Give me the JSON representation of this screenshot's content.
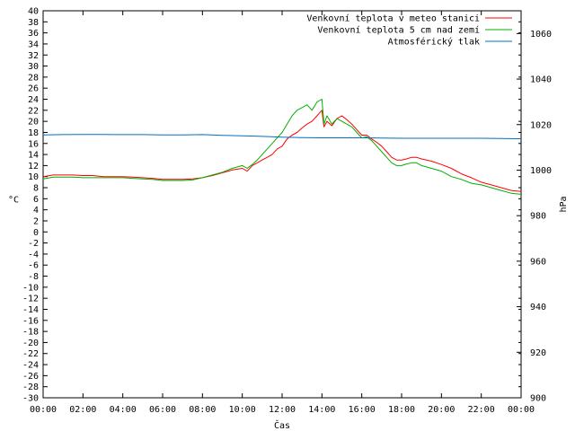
{
  "chart_data": {
    "type": "line",
    "xlabel": "Čas",
    "ylabel": "°C",
    "y2label": "hPa",
    "xlim": [
      0,
      24
    ],
    "x_ticks": [
      "00:00",
      "02:00",
      "04:00",
      "06:00",
      "08:00",
      "10:00",
      "12:00",
      "14:00",
      "16:00",
      "18:00",
      "20:00",
      "22:00",
      "00:00"
    ],
    "ylim": [
      -30,
      40
    ],
    "y_ticks": [
      40,
      38,
      36,
      34,
      32,
      30,
      28,
      26,
      24,
      22,
      20,
      18,
      16,
      14,
      12,
      10,
      8,
      6,
      4,
      2,
      0,
      -2,
      -4,
      -6,
      -8,
      -10,
      -12,
      -14,
      -16,
      -18,
      -20,
      -22,
      -24,
      -26,
      -28,
      -30
    ],
    "y2lim": [
      900,
      1070
    ],
    "y2_ticks": [
      1060,
      1040,
      1020,
      1000,
      980,
      960,
      940,
      920,
      900
    ],
    "grid": false,
    "legend_position": "top-right",
    "series": [
      {
        "name": "Venkovní teplota v meteo stanici",
        "color": "#ff0000",
        "axis": "left",
        "x": [
          0,
          0.5,
          1,
          1.5,
          2,
          2.5,
          3,
          3.5,
          4,
          4.5,
          5,
          5.5,
          6,
          6.5,
          7,
          7.5,
          8,
          8.5,
          9,
          9.5,
          10,
          10.25,
          10.5,
          10.75,
          11,
          11.25,
          11.5,
          11.75,
          12,
          12.25,
          12.5,
          12.75,
          13,
          13.25,
          13.5,
          13.75,
          14,
          14.1,
          14.25,
          14.5,
          14.75,
          15,
          15.25,
          15.5,
          15.75,
          16,
          16.25,
          16.5,
          16.75,
          17,
          17.25,
          17.5,
          17.75,
          18,
          18.25,
          18.5,
          18.75,
          19,
          19.5,
          20,
          20.5,
          21,
          21.5,
          22,
          22.5,
          23,
          23.5,
          24
        ],
        "values": [
          10,
          10.3,
          10.3,
          10.3,
          10.2,
          10.2,
          10,
          10,
          10,
          9.9,
          9.8,
          9.7,
          9.5,
          9.5,
          9.5,
          9.6,
          9.8,
          10.2,
          10.7,
          11.2,
          11.5,
          11,
          12,
          12.5,
          13,
          13.5,
          14,
          15,
          15.5,
          16.8,
          17.5,
          18,
          18.8,
          19.5,
          20,
          21,
          22,
          19,
          20,
          19.2,
          20.5,
          21,
          20.3,
          19.5,
          18.5,
          17.5,
          17.5,
          16.8,
          16.2,
          15.5,
          14.5,
          13.5,
          13,
          13,
          13.2,
          13.5,
          13.5,
          13.2,
          12.8,
          12.2,
          11.5,
          10.5,
          9.8,
          9,
          8.5,
          8,
          7.5,
          7.3
        ]
      },
      {
        "name": "Venkovní teplota 5 cm nad zemí",
        "color": "#00b000",
        "axis": "left",
        "x": [
          0,
          0.5,
          1,
          1.5,
          2,
          2.5,
          3,
          3.5,
          4,
          4.5,
          5,
          5.5,
          6,
          6.5,
          7,
          7.5,
          8,
          8.5,
          9,
          9.5,
          10,
          10.25,
          10.5,
          10.75,
          11,
          11.25,
          11.5,
          11.75,
          12,
          12.25,
          12.5,
          12.75,
          13,
          13.25,
          13.5,
          13.75,
          14,
          14.1,
          14.25,
          14.5,
          14.75,
          15,
          15.25,
          15.5,
          15.75,
          16,
          16.25,
          16.5,
          16.75,
          17,
          17.25,
          17.5,
          17.75,
          18,
          18.25,
          18.5,
          18.75,
          19,
          19.5,
          20,
          20.5,
          21,
          21.5,
          22,
          22.5,
          23,
          23.5,
          24
        ],
        "values": [
          9.6,
          9.9,
          9.9,
          9.9,
          9.8,
          9.8,
          9.8,
          9.8,
          9.8,
          9.7,
          9.6,
          9.5,
          9.3,
          9.3,
          9.3,
          9.4,
          9.8,
          10.3,
          10.8,
          11.5,
          12,
          11.5,
          12.2,
          13,
          14,
          15,
          16,
          17,
          18,
          19.5,
          21,
          22,
          22.5,
          23,
          22,
          23.5,
          24,
          19.5,
          21,
          19.5,
          20.5,
          20,
          19.5,
          19,
          18,
          17,
          17.2,
          16.5,
          15.5,
          14.5,
          13.5,
          12.5,
          12,
          12,
          12.3,
          12.5,
          12.5,
          12,
          11.5,
          11,
          10,
          9.5,
          8.8,
          8.5,
          8,
          7.5,
          7,
          6.8
        ]
      },
      {
        "name": "Atmosférický tlak",
        "color": "#0070c0",
        "axis": "right",
        "x": [
          0,
          1,
          2,
          3,
          4,
          5,
          6,
          7,
          8,
          9,
          10,
          11,
          12,
          13,
          14,
          15,
          16,
          17,
          18,
          19,
          20,
          21,
          22,
          23,
          24
        ],
        "values": [
          1015.5,
          1015.6,
          1015.7,
          1015.7,
          1015.6,
          1015.6,
          1015.5,
          1015.5,
          1015.6,
          1015.3,
          1015.1,
          1014.8,
          1014.5,
          1014.3,
          1014.2,
          1014.2,
          1014.2,
          1014.1,
          1014,
          1014,
          1014,
          1014,
          1014,
          1013.9,
          1013.8
        ]
      }
    ]
  }
}
